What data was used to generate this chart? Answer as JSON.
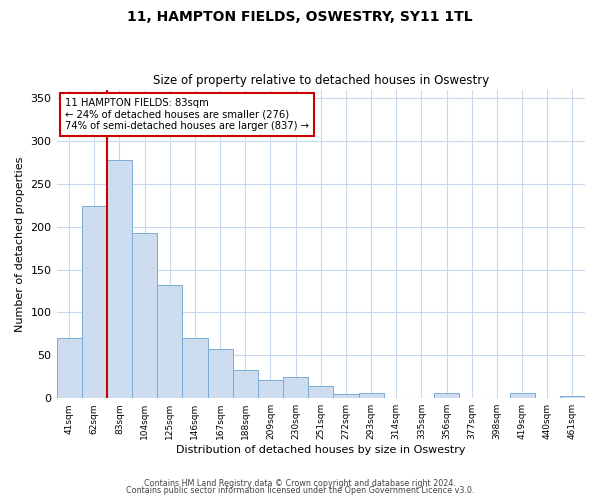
{
  "title": "11, HAMPTON FIELDS, OSWESTRY, SY11 1TL",
  "subtitle": "Size of property relative to detached houses in Oswestry",
  "xlabel": "Distribution of detached houses by size in Oswestry",
  "ylabel": "Number of detached properties",
  "bar_labels": [
    "41sqm",
    "62sqm",
    "83sqm",
    "104sqm",
    "125sqm",
    "146sqm",
    "167sqm",
    "188sqm",
    "209sqm",
    "230sqm",
    "251sqm",
    "272sqm",
    "293sqm",
    "314sqm",
    "335sqm",
    "356sqm",
    "377sqm",
    "398sqm",
    "419sqm",
    "440sqm",
    "461sqm"
  ],
  "bar_values": [
    70,
    224,
    278,
    193,
    132,
    70,
    57,
    33,
    21,
    25,
    14,
    5,
    6,
    0,
    0,
    6,
    0,
    0,
    6,
    0,
    2
  ],
  "bar_color": "#cddcef",
  "bar_edge_color": "#7aaad4",
  "highlight_bar_index": 2,
  "highlight_line_color": "#cc0000",
  "annotation_text": "11 HAMPTON FIELDS: 83sqm\n← 24% of detached houses are smaller (276)\n74% of semi-detached houses are larger (837) →",
  "annotation_box_color": "#ffffff",
  "annotation_box_edge_color": "#cc0000",
  "ylim": [
    0,
    360
  ],
  "yticks": [
    0,
    50,
    100,
    150,
    200,
    250,
    300,
    350
  ],
  "footer_line1": "Contains HM Land Registry data © Crown copyright and database right 2024.",
  "footer_line2": "Contains public sector information licensed under the Open Government Licence v3.0.",
  "background_color": "#ffffff",
  "grid_color": "#c8d8ed"
}
